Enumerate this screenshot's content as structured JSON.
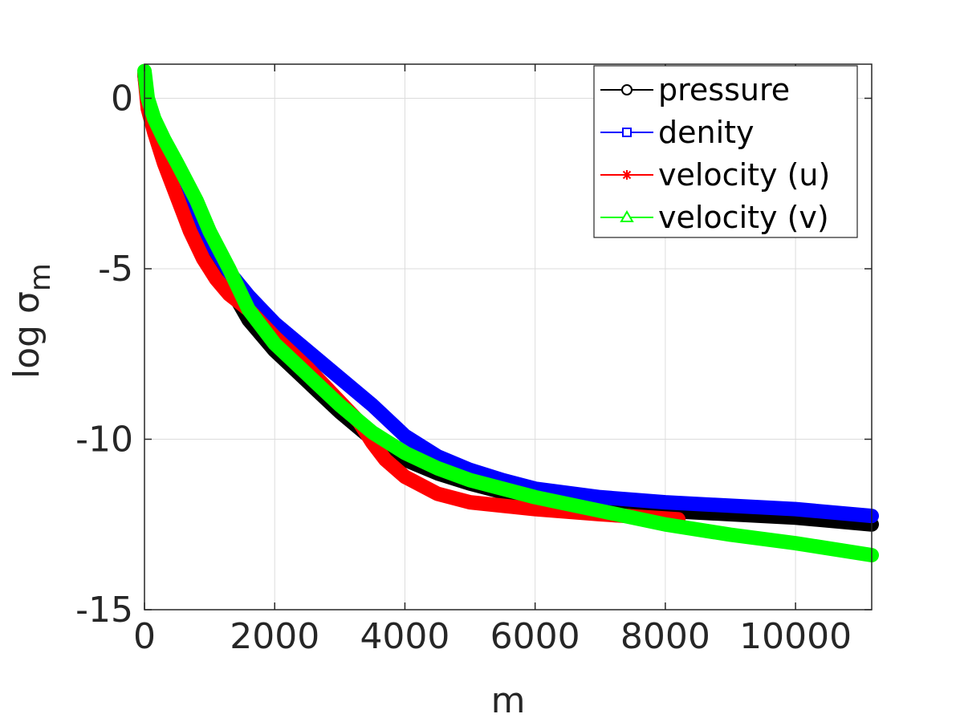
{
  "chart_data": {
    "type": "line",
    "title": "",
    "xlabel": "m",
    "ylabel": "log σ",
    "ylabel_subscript": "m",
    "xlim": [
      0,
      11170
    ],
    "ylim": [
      -15,
      1
    ],
    "xticks": [
      0,
      2000,
      4000,
      6000,
      8000,
      10000
    ],
    "xtick_labels": [
      "0",
      "2000",
      "4000",
      "6000",
      "8000",
      "10000"
    ],
    "yticks": [
      -15,
      -10,
      -5,
      0
    ],
    "ytick_labels": [
      "-15",
      "-10",
      "-5",
      "0"
    ],
    "grid": true,
    "legend_position": "top-right",
    "series": [
      {
        "name": "pressure",
        "color": "#000000",
        "marker": "circle",
        "x": [
          0,
          50,
          150,
          300,
          500,
          800,
          1000,
          1300,
          1600,
          2000,
          2500,
          3000,
          3500,
          4000,
          4500,
          5000,
          5500,
          6000,
          7000,
          8000,
          9000,
          10000,
          11170
        ],
        "y": [
          0.7,
          -0.1,
          -0.7,
          -1.3,
          -2.1,
          -3.3,
          -4.3,
          -5.5,
          -6.5,
          -7.4,
          -8.3,
          -9.2,
          -10.0,
          -10.6,
          -11.0,
          -11.3,
          -11.55,
          -11.75,
          -11.95,
          -12.1,
          -12.2,
          -12.3,
          -12.5
        ]
      },
      {
        "name": "denity",
        "color": "#0000ff",
        "marker": "square",
        "x": [
          0,
          50,
          150,
          300,
          500,
          800,
          1000,
          1300,
          1600,
          2000,
          2500,
          3000,
          3500,
          4000,
          4500,
          5000,
          5500,
          6000,
          7000,
          8000,
          9000,
          10000,
          11170
        ],
        "y": [
          0.7,
          -0.1,
          -0.7,
          -1.3,
          -2.1,
          -3.3,
          -4.2,
          -5.1,
          -5.8,
          -6.6,
          -7.4,
          -8.2,
          -9.0,
          -9.9,
          -10.5,
          -10.9,
          -11.2,
          -11.45,
          -11.7,
          -11.85,
          -11.95,
          -12.05,
          -12.25
        ]
      },
      {
        "name": "velocity (u)",
        "color": "#ff0000",
        "marker": "asterisk",
        "x": [
          0,
          50,
          150,
          300,
          500,
          700,
          900,
          1100,
          1300,
          1600,
          2000,
          2500,
          3000,
          3300,
          3500,
          3700,
          4000,
          4500,
          5000,
          5500,
          6000,
          7000,
          8200
        ],
        "y": [
          0.7,
          -0.3,
          -1.0,
          -1.9,
          -2.9,
          -3.9,
          -4.7,
          -5.3,
          -5.75,
          -6.2,
          -7.0,
          -7.9,
          -8.9,
          -9.5,
          -10.1,
          -10.6,
          -11.1,
          -11.6,
          -11.85,
          -11.95,
          -12.05,
          -12.2,
          -12.35
        ]
      },
      {
        "name": "velocity (v)",
        "color": "#00ff00",
        "marker": "triangle",
        "x": [
          0,
          50,
          150,
          300,
          500,
          800,
          1000,
          1300,
          1600,
          2000,
          2500,
          3000,
          3500,
          4000,
          4500,
          5000,
          5500,
          6000,
          7000,
          8000,
          9000,
          10000,
          11170
        ],
        "y": [
          0.8,
          0.0,
          -0.6,
          -1.2,
          -1.9,
          -3.0,
          -3.9,
          -5.0,
          -6.2,
          -7.2,
          -8.1,
          -9.0,
          -9.8,
          -10.4,
          -10.85,
          -11.2,
          -11.45,
          -11.7,
          -12.1,
          -12.5,
          -12.8,
          -13.05,
          -13.4
        ]
      }
    ]
  }
}
